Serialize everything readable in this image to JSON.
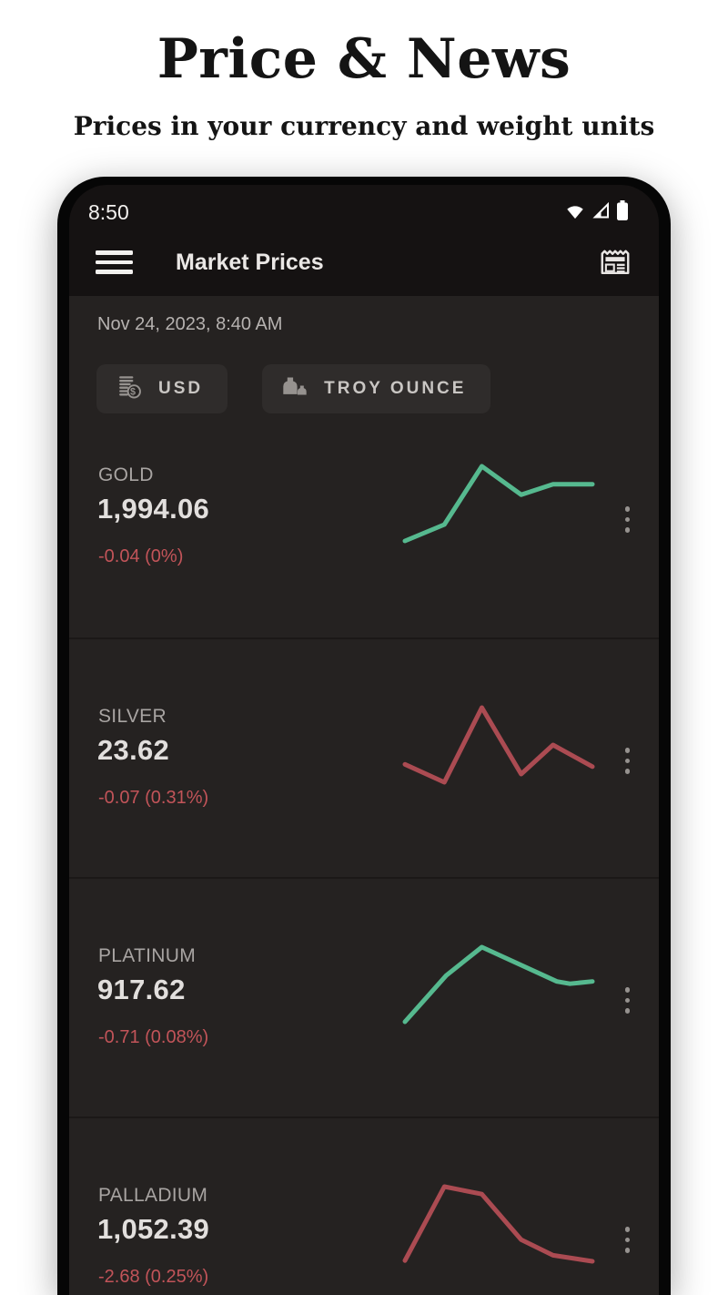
{
  "page": {
    "title": "Price & News",
    "subtitle": "Prices in your currency and weight units"
  },
  "statusbar": {
    "time": "8:50",
    "icons": [
      "wifi-icon",
      "cellular-signal-icon",
      "battery-icon"
    ]
  },
  "appbar": {
    "menu_icon": "hamburger-menu-icon",
    "title": "Market Prices",
    "action_icon": "newspaper-icon"
  },
  "filters": {
    "date": "Nov 24, 2023, 8:40 AM",
    "currency": {
      "icon": "coins-dollar-icon",
      "label": "USD"
    },
    "unit": {
      "icon": "weights-icon",
      "label": "TROY OUNCE"
    }
  },
  "metals": [
    {
      "name": "GOLD",
      "price": "1,994.06",
      "change": "-0.04 (0%)",
      "trend": "up",
      "line_color": "#56b98f",
      "points": [
        [
          0,
          100
        ],
        [
          21,
          78
        ],
        [
          41,
          0
        ],
        [
          62,
          38
        ],
        [
          79,
          24
        ],
        [
          100,
          24
        ]
      ]
    },
    {
      "name": "SILVER",
      "price": "23.62",
      "change": "-0.07 (0.31%)",
      "trend": "down",
      "line_color": "#ab4b52",
      "points": [
        [
          0,
          76
        ],
        [
          21,
          100
        ],
        [
          41,
          0
        ],
        [
          62,
          89
        ],
        [
          79,
          50
        ],
        [
          100,
          79
        ]
      ]
    },
    {
      "name": "PLATINUM",
      "price": "917.62",
      "change": "-0.71 (0.08%)",
      "trend": "up",
      "line_color": "#56b98f",
      "points": [
        [
          0,
          100
        ],
        [
          22,
          38
        ],
        [
          41,
          0
        ],
        [
          81,
          46
        ],
        [
          88,
          49
        ],
        [
          100,
          46
        ]
      ]
    },
    {
      "name": "PALLADIUM",
      "price": "1,052.39",
      "change": "-2.68 (0.25%)",
      "trend": "down",
      "line_color": "#ab4b52",
      "points": [
        [
          0,
          99
        ],
        [
          21,
          0
        ],
        [
          41,
          10
        ],
        [
          62,
          71
        ],
        [
          79,
          92
        ],
        [
          100,
          100
        ]
      ]
    }
  ],
  "colors": {
    "positive_line": "#56b98f",
    "negative_line": "#ab4b52",
    "change_text": "#c25459",
    "topbar_bg": "#151212",
    "content_bg": "#252221",
    "button_bg": "#2f2c2b"
  }
}
